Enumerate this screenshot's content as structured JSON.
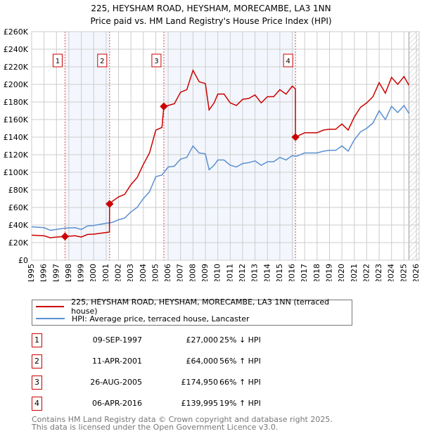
{
  "title": "225, HEYSHAM ROAD, HEYSHAM, MORECAMBE, LA3 1NN",
  "subtitle": "Price paid vs. HM Land Registry's House Price Index (HPI)",
  "chart_data": {
    "type": "line",
    "ylim": [
      0,
      260000
    ],
    "xlim": [
      1995,
      2026
    ],
    "yticks": [
      0,
      20000,
      40000,
      60000,
      80000,
      100000,
      120000,
      140000,
      160000,
      180000,
      200000,
      220000,
      240000,
      260000
    ],
    "ytick_labels": [
      "£0",
      "£20K",
      "£40K",
      "£60K",
      "£80K",
      "£100K",
      "£120K",
      "£140K",
      "£160K",
      "£180K",
      "£200K",
      "£220K",
      "£240K",
      "£260K"
    ],
    "xticks": [
      1995,
      1996,
      1997,
      1998,
      1999,
      2000,
      2001,
      2002,
      2003,
      2004,
      2005,
      2006,
      2007,
      2008,
      2009,
      2010,
      2011,
      2012,
      2013,
      2014,
      2015,
      2016,
      2017,
      2018,
      2019,
      2020,
      2021,
      2022,
      2023,
      2024,
      2025,
      2026
    ],
    "grid": true,
    "forecast_hatch_from": 2025.4,
    "series": [
      {
        "name": "225, HEYSHAM ROAD, HEYSHAM, MORECAMBE, LA3 1NN (terraced house)",
        "color": "#cc0000",
        "x": [
          1995,
          1996,
          1996.5,
          1997,
          1997.69,
          1998.5,
          1999,
          1999.5,
          2000,
          2001,
          2001.27,
          2001.28,
          2001.5,
          2002,
          2002.5,
          2003,
          2003.5,
          2004,
          2004.5,
          2005,
          2005.5,
          2005.65,
          2006,
          2006.5,
          2007,
          2007.5,
          2008,
          2008.5,
          2009,
          2009.3,
          2009.7,
          2010,
          2010.5,
          2011,
          2011.5,
          2012,
          2012.5,
          2013,
          2013.5,
          2014,
          2014.5,
          2015,
          2015.5,
          2016,
          2016.25,
          2016.26,
          2017,
          2018,
          2018.5,
          2019,
          2019.5,
          2020,
          2020.5,
          2021,
          2021.5,
          2022,
          2022.5,
          2023,
          2023.5,
          2024,
          2024.5,
          2025,
          2025.4
        ],
        "y": [
          28500,
          27800,
          25500,
          26300,
          27000,
          27800,
          26300,
          29300,
          29600,
          31500,
          32000,
          64000,
          67000,
          72000,
          75000,
          86000,
          94000,
          109000,
          122000,
          148000,
          151000,
          174950,
          176000,
          178000,
          191000,
          194000,
          216000,
          203000,
          201000,
          171000,
          179000,
          189000,
          189000,
          179000,
          176000,
          183000,
          184000,
          188000,
          179000,
          186000,
          186000,
          194000,
          189000,
          198000,
          195000,
          139995,
          145000,
          145000,
          148000,
          149000,
          149000,
          155000,
          148000,
          163000,
          174000,
          179000,
          186000,
          202000,
          190000,
          208000,
          200000,
          209000,
          199000
        ]
      },
      {
        "name": "HPI: Average price, terraced house, Lancaster",
        "color": "#5b8fd0",
        "x": [
          1995,
          1996,
          1996.5,
          1997,
          1997.69,
          1998.5,
          1999,
          1999.5,
          2000,
          2001,
          2001.5,
          2002,
          2002.5,
          2003,
          2003.5,
          2004,
          2004.5,
          2005,
          2005.5,
          2006,
          2006.5,
          2007,
          2007.5,
          2008,
          2008.5,
          2009,
          2009.3,
          2009.7,
          2010,
          2010.5,
          2011,
          2011.5,
          2012,
          2012.5,
          2013,
          2013.5,
          2014,
          2014.5,
          2015,
          2015.5,
          2016,
          2016.3,
          2017,
          2018,
          2018.5,
          2019,
          2019.5,
          2020,
          2020.5,
          2021,
          2021.5,
          2022,
          2022.5,
          2023,
          2023.5,
          2024,
          2024.5,
          2025,
          2025.4
        ],
        "y": [
          38000,
          37000,
          34000,
          35000,
          36500,
          37000,
          35000,
          39000,
          39500,
          42000,
          43000,
          46000,
          48000,
          55000,
          60000,
          70000,
          78000,
          95000,
          97000,
          106000,
          107000,
          115000,
          117000,
          130000,
          122000,
          121000,
          103000,
          108000,
          114000,
          114000,
          108000,
          106000,
          110000,
          111000,
          113000,
          108000,
          112000,
          112000,
          117000,
          114000,
          119000,
          118000,
          122000,
          122000,
          124000,
          125000,
          125000,
          130000,
          124000,
          137000,
          146000,
          150000,
          156000,
          170000,
          160000,
          175000,
          168000,
          176000,
          167000
        ]
      }
    ],
    "sales": [
      {
        "label": "1",
        "x": 1997.69,
        "price": 27000
      },
      {
        "label": "2",
        "x": 2001.28,
        "price": 64000
      },
      {
        "label": "3",
        "x": 2005.65,
        "price": 174950
      },
      {
        "label": "4",
        "x": 2016.26,
        "price": 139995
      }
    ]
  },
  "legend": {
    "red": "225, HEYSHAM ROAD, HEYSHAM, MORECAMBE, LA3 1NN (terraced house)",
    "blue": "HPI: Average price, terraced house, Lancaster"
  },
  "table": [
    {
      "n": "1",
      "date": "09-SEP-1997",
      "price": "£27,000",
      "pct": "25% ↓ HPI"
    },
    {
      "n": "2",
      "date": "11-APR-2001",
      "price": "£64,000",
      "pct": "56% ↑ HPI"
    },
    {
      "n": "3",
      "date": "26-AUG-2005",
      "price": "£174,950",
      "pct": "66% ↑ HPI"
    },
    {
      "n": "4",
      "date": "06-APR-2016",
      "price": "£139,995",
      "pct": "19% ↑ HPI"
    }
  ],
  "footer": [
    "Contains HM Land Registry data © Crown copyright and database right 2025.",
    "This data is licensed under the Open Government Licence v3.0."
  ]
}
